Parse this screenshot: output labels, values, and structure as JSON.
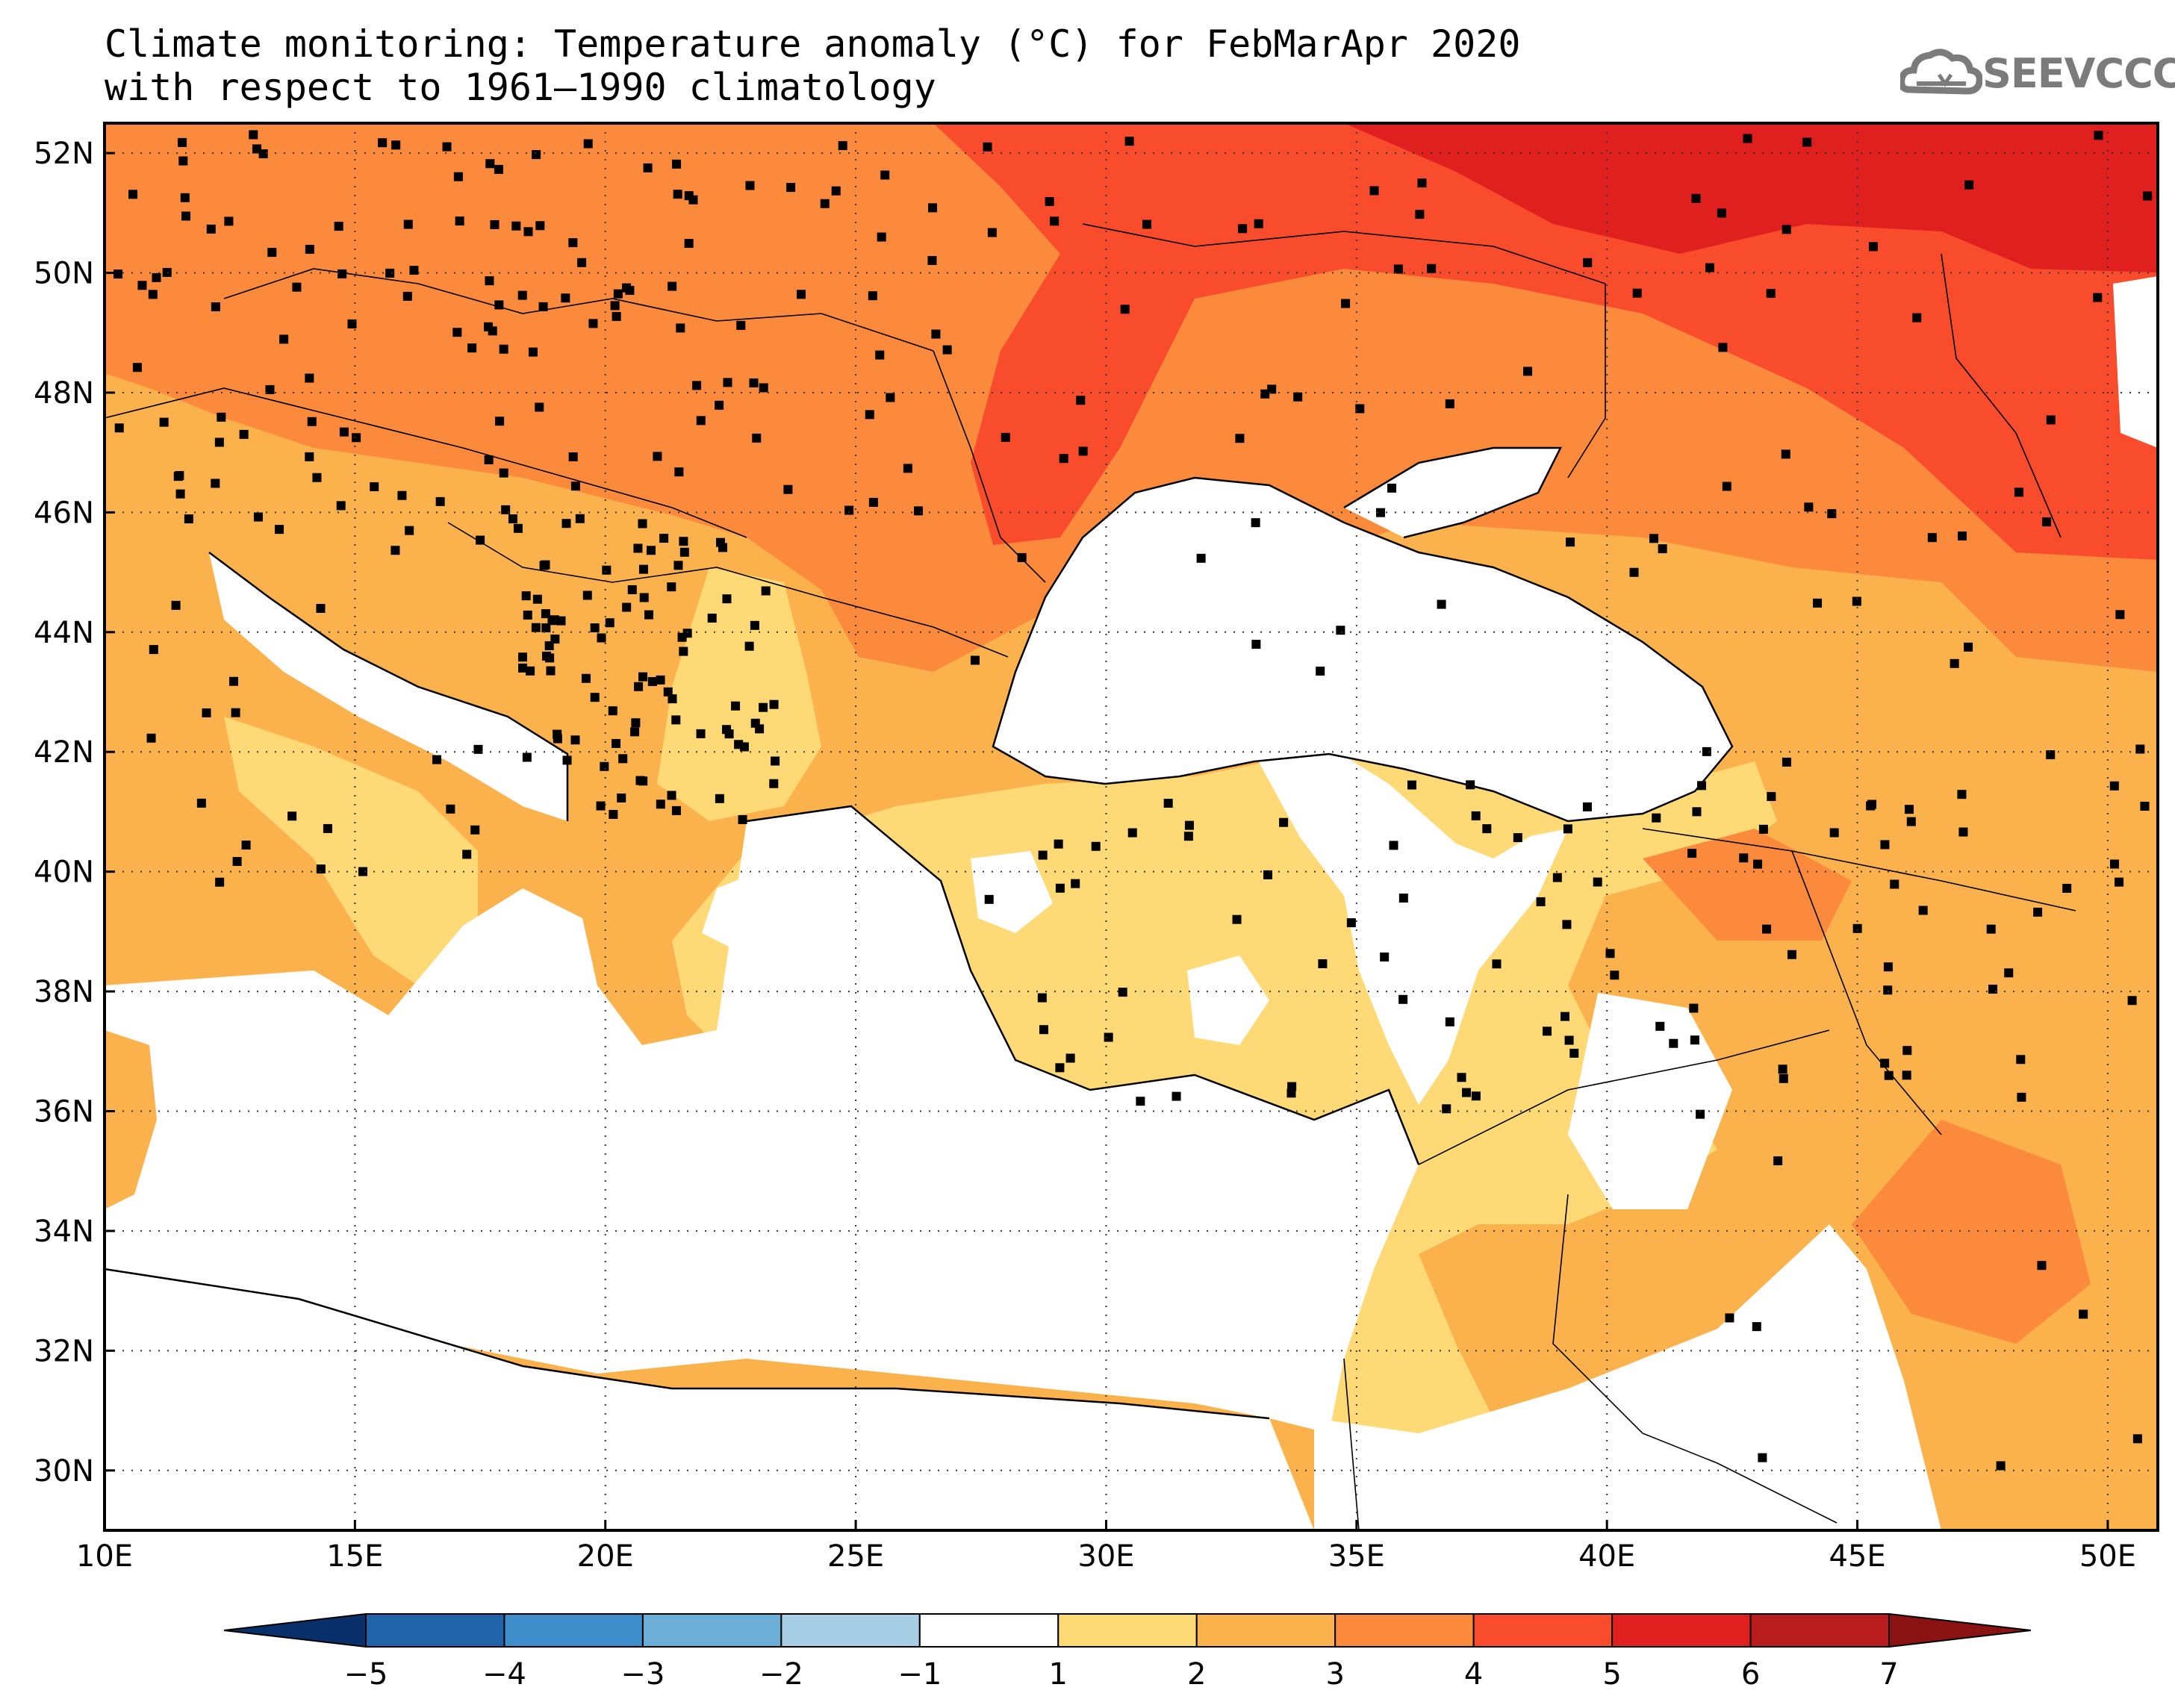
{
  "title": {
    "line1": "Climate monitoring: Temperature anomaly (°C) for FebMarApr 2020",
    "line2": "with respect to 1961–1990 climatology"
  },
  "logo": {
    "text": "SEEVCCC",
    "icon": "cloud-icon",
    "color": "#7b7b7b"
  },
  "map": {
    "lon_range": [
      10,
      51
    ],
    "lat_range": [
      29,
      52.5
    ],
    "lon_ticks": [
      "10E",
      "15E",
      "20E",
      "25E",
      "30E",
      "35E",
      "40E",
      "45E",
      "50E"
    ],
    "lat_ticks": [
      "30N",
      "32N",
      "34N",
      "36N",
      "38N",
      "40N",
      "42N",
      "44N",
      "46N",
      "48N",
      "50N",
      "52N"
    ],
    "gridlines": "dotted",
    "stations": "black square markers"
  },
  "colorbar": {
    "labels": [
      "−5",
      "−4",
      "−3",
      "−2",
      "−1",
      "1",
      "2",
      "3",
      "4",
      "5",
      "6",
      "7"
    ],
    "colors": [
      "#08306b",
      "#1f63a8",
      "#3e8ecb",
      "#6baed6",
      "#a6cfe6",
      "#ffffff",
      "#fed976",
      "#fcb24c",
      "#fb8a3c",
      "#f84c2c",
      "#e01f1f",
      "#b81c1c",
      "#8b1212"
    ]
  }
}
